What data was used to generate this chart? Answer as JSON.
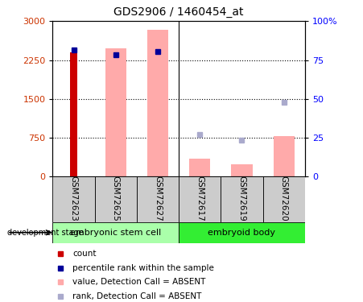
{
  "title": "GDS2906 / 1460454_at",
  "samples": [
    "GSM72623",
    "GSM72625",
    "GSM72627",
    "GSM72617",
    "GSM72619",
    "GSM72620"
  ],
  "groups": [
    "embryonic stem cell",
    "embryoid body"
  ],
  "ylim_left": [
    0,
    3000
  ],
  "ylim_right": [
    0,
    100
  ],
  "yticks_left": [
    0,
    750,
    1500,
    2250,
    3000
  ],
  "ytick_labels_left": [
    "0",
    "750",
    "1500",
    "2250",
    "3000"
  ],
  "yticks_right": [
    0,
    25,
    50,
    75,
    100
  ],
  "ytick_labels_right": [
    "0",
    "25",
    "50",
    "75",
    "100%"
  ],
  "count_bar_value": 2400,
  "count_bar_index": 0,
  "rank_present_value": 2450,
  "rank_present_index": 0,
  "pink_bar_values": [
    0,
    2480,
    2830,
    350,
    240,
    790
  ],
  "blue_absent_rank_values": [
    0,
    2350,
    2410,
    0,
    0,
    0
  ],
  "light_blue_absent_rank_values": [
    0,
    0,
    0,
    820,
    710,
    1430
  ],
  "count_color": "#cc0000",
  "rank_color": "#000099",
  "pink_color": "#ffaaaa",
  "light_blue_color": "#aaaacc",
  "group_color_1": "#aaffaa",
  "group_color_2": "#33ee33",
  "label_bg_color": "#cccccc",
  "bar_width": 0.5,
  "rank_marker_size": 5
}
